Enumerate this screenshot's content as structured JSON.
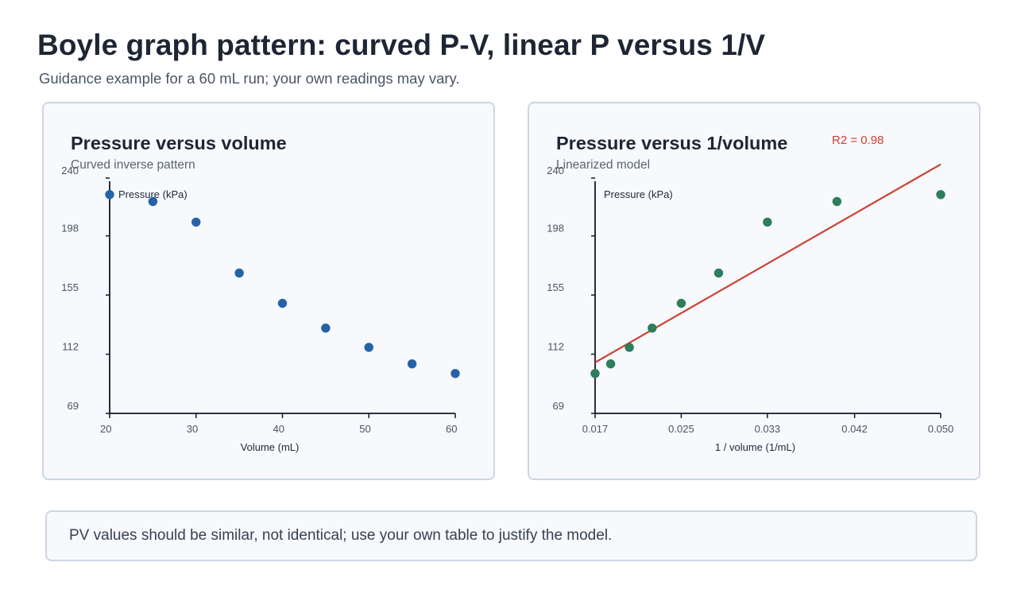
{
  "title": "Boyle graph pattern: curved P-V, linear P versus 1/V",
  "subtitle": "Guidance example for a 60 mL run; your own readings may vary.",
  "footer": "PV values should be similar, not identical; use your own table to justify the model.",
  "chart_data": [
    {
      "type": "scatter",
      "title": "Pressure versus volume",
      "subtitle": "Curved inverse pattern",
      "xlabel": "Volume (mL)",
      "ylabel": "Pressure (kPa)",
      "xlim": [
        20,
        60
      ],
      "ylim": [
        69,
        240
      ],
      "xticks": [
        "20",
        "30",
        "40",
        "50",
        "60"
      ],
      "xtick_values": [
        20,
        30,
        40,
        50,
        60
      ],
      "yticks": [
        "240",
        "198",
        "155",
        "112",
        "69"
      ],
      "ytick_values": [
        240,
        198,
        155,
        112,
        69
      ],
      "color": "#2563a8",
      "points": [
        {
          "x": 20,
          "y": 228
        },
        {
          "x": 25,
          "y": 223
        },
        {
          "x": 30,
          "y": 208
        },
        {
          "x": 35,
          "y": 171
        },
        {
          "x": 40,
          "y": 149
        },
        {
          "x": 45,
          "y": 131
        },
        {
          "x": 50,
          "y": 117
        },
        {
          "x": 55,
          "y": 105
        },
        {
          "x": 60,
          "y": 98
        }
      ]
    },
    {
      "type": "scatter",
      "title": "Pressure versus 1/volume",
      "subtitle": "Linearized model",
      "xlabel": "1 / volume (1/mL)",
      "ylabel": "Pressure (kPa)",
      "xlim": [
        0.0167,
        0.05
      ],
      "ylim": [
        69,
        240
      ],
      "xticks": [
        "0.017",
        "0.025",
        "0.033",
        "0.042",
        "0.050"
      ],
      "xtick_values": [
        0.0167,
        0.025,
        0.0333,
        0.0417,
        0.05
      ],
      "yticks": [
        "240",
        "198",
        "155",
        "112",
        "69"
      ],
      "ytick_values": [
        240,
        198,
        155,
        112,
        69
      ],
      "color": "#2e7d5b",
      "fit_color": "#cc4133",
      "fit_label": "R2 = 0.98",
      "fit_line": [
        {
          "x": 0.0167,
          "y": 106
        },
        {
          "x": 0.05,
          "y": 250
        }
      ],
      "points": [
        {
          "x": 0.0167,
          "y": 98
        },
        {
          "x": 0.0182,
          "y": 105
        },
        {
          "x": 0.02,
          "y": 117
        },
        {
          "x": 0.0222,
          "y": 131
        },
        {
          "x": 0.025,
          "y": 149
        },
        {
          "x": 0.0286,
          "y": 171
        },
        {
          "x": 0.0333,
          "y": 208
        },
        {
          "x": 0.04,
          "y": 223
        },
        {
          "x": 0.05,
          "y": 228
        }
      ]
    }
  ]
}
